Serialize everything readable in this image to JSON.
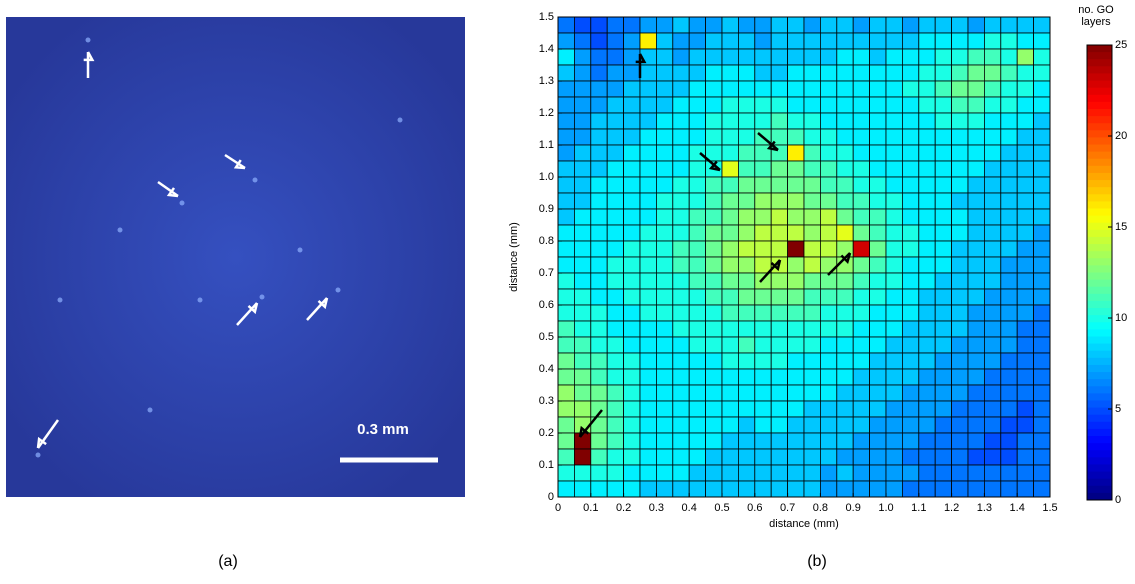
{
  "panel_a": {
    "scale_label": "0.3 mm",
    "caption": "(a)"
  },
  "chart_data": {
    "type": "heatmap",
    "caption": "(b)",
    "xlabel": "distance (mm)",
    "ylabel": "distance (mm)",
    "colorbar_label": [
      "no. GO",
      "layers"
    ],
    "clim": [
      0,
      25
    ],
    "cticks": [
      0,
      5,
      10,
      15,
      20,
      25
    ],
    "xlim": [
      0,
      1.5
    ],
    "ylim": [
      0,
      1.5
    ],
    "xticks": [
      0,
      0.1,
      0.2,
      0.3,
      0.4,
      0.5,
      0.6,
      0.7,
      0.8,
      0.9,
      {
        "value": 1,
        "label": "1.0"
      },
      1.1,
      1.2,
      1.3,
      1.4,
      1.5
    ],
    "yticks": [
      0,
      0.1,
      0.2,
      0.3,
      0.4,
      0.5,
      0.6,
      0.7,
      0.8,
      0.9,
      {
        "value": 1,
        "label": "1.0"
      },
      1.1,
      1.2,
      1.3,
      1.4,
      1.5
    ],
    "z": [
      [
        6,
        5,
        5,
        6,
        6,
        7,
        7,
        8,
        7,
        7,
        8,
        7,
        7,
        8,
        8,
        7,
        8,
        8,
        7,
        8,
        8,
        7,
        8,
        8,
        8,
        7,
        8,
        8,
        8,
        8
      ],
      [
        7,
        6,
        5,
        6,
        7,
        16,
        8,
        7,
        7,
        8,
        8,
        8,
        7,
        8,
        8,
        8,
        8,
        8,
        8,
        8,
        8,
        8,
        9,
        9,
        9,
        9,
        10,
        10,
        9,
        9
      ],
      [
        9,
        7,
        6,
        6,
        7,
        8,
        8,
        7,
        8,
        8,
        8,
        8,
        8,
        8,
        8,
        8,
        8,
        9,
        9,
        8,
        9,
        9,
        9,
        10,
        10,
        11,
        11,
        10,
        13,
        10
      ],
      [
        8,
        7,
        6,
        7,
        7,
        8,
        8,
        8,
        8,
        9,
        9,
        9,
        8,
        8,
        9,
        9,
        9,
        9,
        9,
        9,
        9,
        9,
        10,
        10,
        11,
        12,
        12,
        11,
        10,
        10
      ],
      [
        7,
        7,
        7,
        7,
        8,
        8,
        8,
        8,
        9,
        9,
        9,
        9,
        9,
        9,
        9,
        9,
        9,
        9,
        9,
        9,
        9,
        10,
        10,
        11,
        12,
        12,
        11,
        10,
        10,
        9
      ],
      [
        7,
        7,
        7,
        8,
        8,
        8,
        8,
        9,
        9,
        9,
        10,
        10,
        10,
        10,
        9,
        9,
        9,
        9,
        9,
        9,
        9,
        9,
        10,
        10,
        11,
        11,
        10,
        10,
        9,
        9
      ],
      [
        7,
        7,
        8,
        8,
        8,
        8,
        9,
        9,
        9,
        10,
        10,
        10,
        10,
        11,
        10,
        10,
        9,
        9,
        9,
        9,
        9,
        9,
        9,
        10,
        10,
        10,
        9,
        9,
        9,
        8
      ],
      [
        7,
        7,
        8,
        8,
        8,
        9,
        9,
        9,
        9,
        10,
        10,
        10,
        11,
        11,
        11,
        10,
        10,
        9,
        9,
        9,
        9,
        9,
        9,
        9,
        9,
        9,
        9,
        9,
        8,
        8
      ],
      [
        7,
        8,
        8,
        8,
        9,
        9,
        9,
        9,
        10,
        10,
        10,
        11,
        11,
        11,
        16,
        11,
        10,
        10,
        9,
        9,
        9,
        9,
        9,
        9,
        9,
        9,
        9,
        8,
        8,
        8
      ],
      [
        8,
        8,
        8,
        9,
        9,
        9,
        9,
        9,
        10,
        10,
        15,
        11,
        11,
        12,
        12,
        11,
        11,
        10,
        10,
        9,
        9,
        9,
        9,
        9,
        9,
        9,
        8,
        8,
        8,
        8
      ],
      [
        8,
        8,
        9,
        9,
        9,
        9,
        9,
        10,
        10,
        11,
        11,
        12,
        12,
        12,
        12,
        12,
        11,
        11,
        10,
        10,
        9,
        9,
        9,
        9,
        9,
        8,
        8,
        8,
        8,
        8
      ],
      [
        8,
        8,
        9,
        9,
        9,
        9,
        10,
        10,
        10,
        11,
        12,
        12,
        13,
        13,
        13,
        12,
        12,
        11,
        11,
        10,
        10,
        9,
        9,
        9,
        8,
        8,
        8,
        8,
        8,
        8
      ],
      [
        8,
        9,
        9,
        9,
        9,
        9,
        10,
        10,
        11,
        11,
        12,
        13,
        13,
        14,
        13,
        13,
        14,
        12,
        11,
        11,
        10,
        9,
        9,
        9,
        9,
        8,
        8,
        8,
        8,
        8
      ],
      [
        9,
        9,
        9,
        9,
        9,
        10,
        10,
        10,
        11,
        12,
        12,
        13,
        14,
        14,
        14,
        13,
        14,
        15,
        12,
        11,
        10,
        10,
        9,
        9,
        9,
        8,
        8,
        8,
        8,
        7
      ],
      [
        9,
        9,
        9,
        9,
        10,
        10,
        10,
        11,
        11,
        12,
        13,
        14,
        14,
        14,
        25,
        14,
        14,
        13,
        23,
        12,
        10,
        10,
        9,
        9,
        8,
        8,
        8,
        8,
        7,
        7
      ],
      [
        9,
        9,
        9,
        10,
        10,
        10,
        10,
        11,
        11,
        12,
        13,
        13,
        14,
        14,
        13,
        14,
        13,
        13,
        12,
        11,
        10,
        9,
        9,
        9,
        8,
        8,
        8,
        7,
        7,
        7
      ],
      [
        10,
        9,
        9,
        10,
        10,
        10,
        10,
        10,
        11,
        11,
        12,
        12,
        13,
        13,
        13,
        12,
        12,
        12,
        11,
        10,
        10,
        9,
        9,
        8,
        8,
        8,
        8,
        7,
        7,
        7
      ],
      [
        10,
        10,
        9,
        9,
        10,
        10,
        10,
        10,
        10,
        11,
        11,
        12,
        12,
        12,
        12,
        11,
        11,
        11,
        10,
        10,
        9,
        9,
        8,
        8,
        8,
        8,
        7,
        7,
        7,
        7
      ],
      [
        10,
        10,
        10,
        9,
        9,
        10,
        10,
        10,
        10,
        10,
        11,
        11,
        11,
        11,
        11,
        11,
        10,
        10,
        10,
        9,
        9,
        9,
        8,
        8,
        8,
        7,
        7,
        7,
        7,
        6
      ],
      [
        11,
        10,
        10,
        9,
        9,
        9,
        9,
        10,
        10,
        10,
        10,
        10,
        10,
        10,
        10,
        10,
        10,
        10,
        9,
        9,
        9,
        8,
        8,
        8,
        8,
        7,
        7,
        7,
        6,
        6
      ],
      [
        11,
        11,
        10,
        10,
        9,
        9,
        9,
        9,
        10,
        10,
        10,
        11,
        10,
        10,
        10,
        10,
        9,
        9,
        9,
        9,
        8,
        8,
        8,
        8,
        7,
        7,
        7,
        7,
        6,
        6
      ],
      [
        12,
        11,
        11,
        10,
        10,
        9,
        9,
        9,
        9,
        9,
        10,
        10,
        10,
        10,
        9,
        9,
        9,
        9,
        9,
        8,
        8,
        8,
        8,
        7,
        7,
        7,
        7,
        6,
        6,
        6
      ],
      [
        12,
        12,
        11,
        10,
        10,
        9,
        9,
        9,
        9,
        9,
        9,
        9,
        9,
        9,
        9,
        9,
        9,
        9,
        8,
        8,
        8,
        8,
        7,
        7,
        7,
        7,
        6,
        6,
        6,
        6
      ],
      [
        13,
        12,
        12,
        11,
        10,
        9,
        9,
        9,
        9,
        9,
        9,
        9,
        9,
        9,
        9,
        9,
        9,
        8,
        8,
        8,
        8,
        7,
        7,
        7,
        7,
        6,
        6,
        6,
        6,
        6
      ],
      [
        13,
        13,
        12,
        11,
        10,
        9,
        9,
        9,
        9,
        9,
        9,
        9,
        9,
        9,
        9,
        8,
        8,
        8,
        8,
        8,
        7,
        7,
        7,
        7,
        6,
        6,
        6,
        6,
        5,
        6
      ],
      [
        12,
        13,
        12,
        11,
        10,
        9,
        9,
        9,
        9,
        9,
        9,
        8,
        9,
        9,
        8,
        8,
        8,
        8,
        8,
        7,
        7,
        7,
        7,
        6,
        6,
        6,
        6,
        5,
        5,
        6
      ],
      [
        12,
        25,
        12,
        11,
        10,
        9,
        9,
        9,
        9,
        9,
        8,
        8,
        8,
        8,
        8,
        8,
        8,
        8,
        7,
        7,
        7,
        7,
        6,
        6,
        6,
        6,
        5,
        5,
        6,
        6
      ],
      [
        11,
        25,
        11,
        10,
        10,
        9,
        9,
        9,
        9,
        8,
        8,
        8,
        8,
        8,
        8,
        8,
        8,
        7,
        7,
        7,
        7,
        6,
        6,
        6,
        6,
        5,
        5,
        5,
        6,
        6
      ],
      [
        10,
        10,
        10,
        10,
        9,
        9,
        9,
        9,
        8,
        8,
        8,
        8,
        8,
        8,
        8,
        8,
        7,
        8,
        7,
        7,
        7,
        7,
        6,
        6,
        6,
        6,
        6,
        6,
        6,
        6
      ],
      [
        9,
        9,
        9,
        9,
        9,
        8,
        8,
        8,
        8,
        8,
        8,
        8,
        8,
        8,
        8,
        8,
        7,
        7,
        7,
        7,
        7,
        6,
        6,
        6,
        6,
        6,
        6,
        6,
        6,
        6
      ]
    ]
  }
}
